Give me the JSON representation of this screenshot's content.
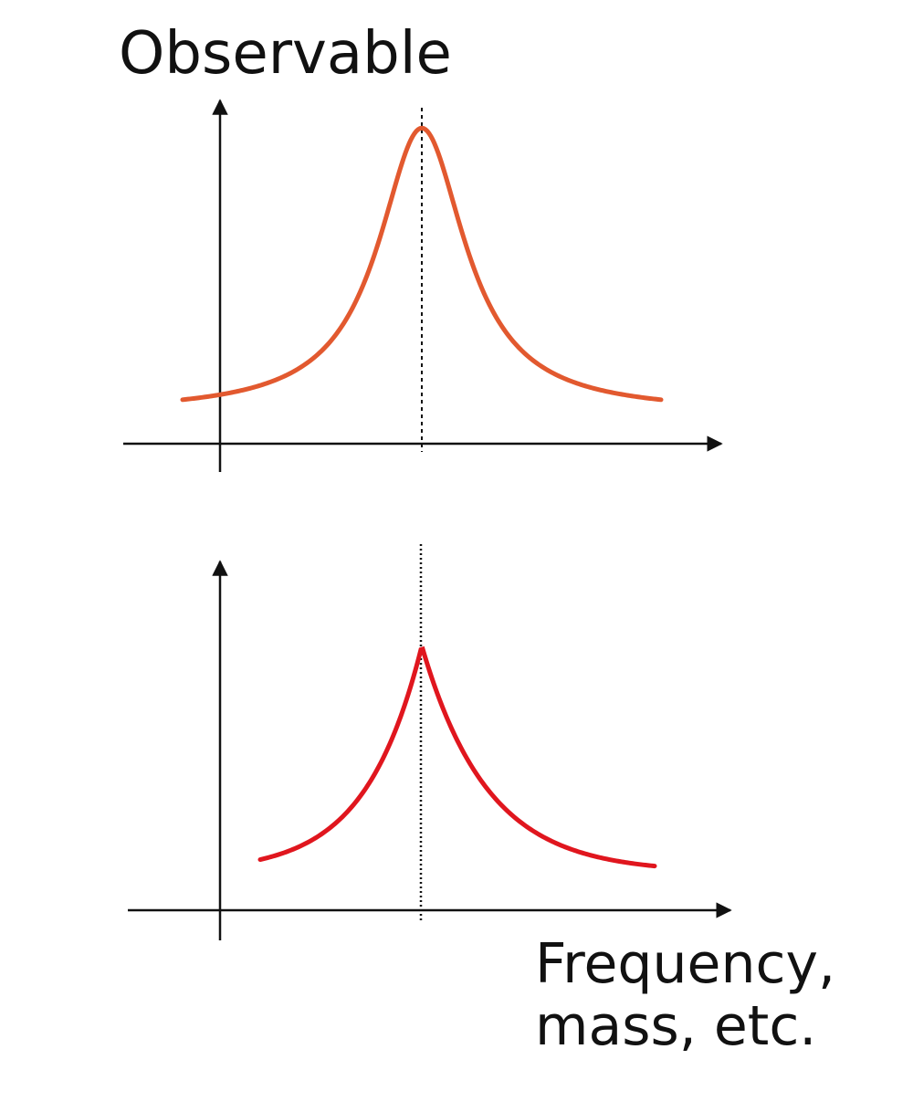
{
  "labels": {
    "y_axis": "Observable",
    "x_axis_line1": "Frequency,",
    "x_axis_line2": "mass, etc."
  },
  "colors": {
    "top_curve": "#e2592f",
    "bottom_curve": "#e0161e",
    "axes": "#111111"
  },
  "panels": [
    {
      "id": "top",
      "shape": "smooth-lorentzian-peak",
      "peak_relative_height": 0.93,
      "tail_relative_height": 0.1
    },
    {
      "id": "bottom",
      "shape": "sharp-cusp-peak",
      "peak_relative_height": 0.75,
      "tail_relative_height": 0.1
    }
  ]
}
